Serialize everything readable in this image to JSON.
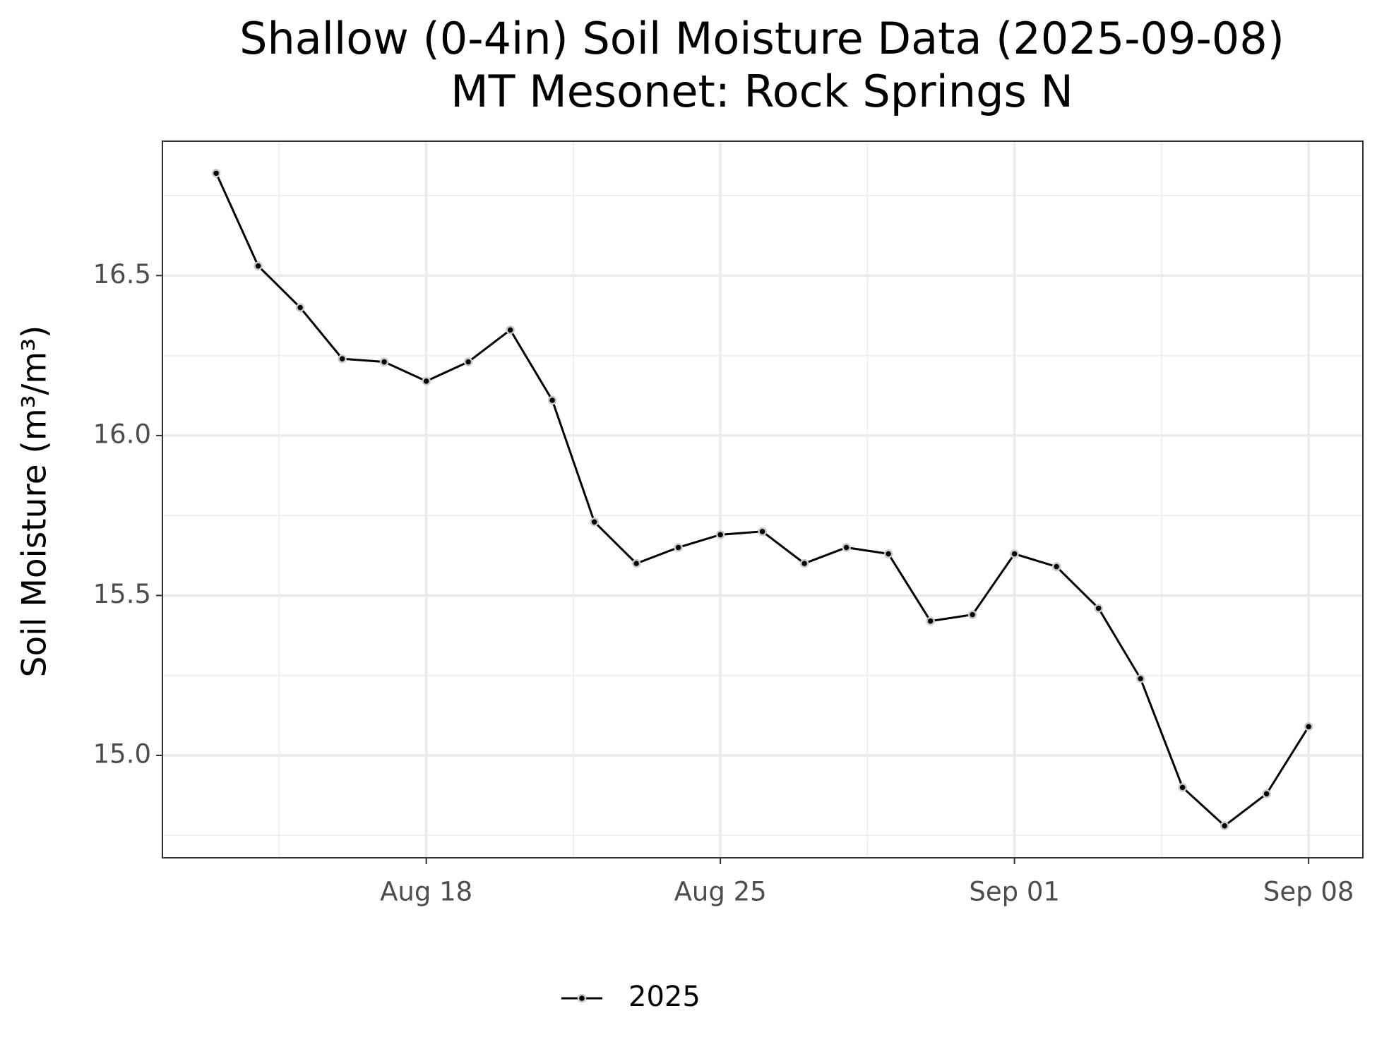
{
  "chart_data": {
    "type": "line",
    "title": "Shallow (0-4in) Soil Moisture Data (2025-09-08)",
    "subtitle": "MT Mesonet: Rock Springs N",
    "y_label": "Soil Moisture (m³/m³)",
    "x": [
      "2025-08-13",
      "2025-08-14",
      "2025-08-15",
      "2025-08-16",
      "2025-08-17",
      "2025-08-18",
      "2025-08-19",
      "2025-08-20",
      "2025-08-21",
      "2025-08-22",
      "2025-08-23",
      "2025-08-24",
      "2025-08-25",
      "2025-08-26",
      "2025-08-27",
      "2025-08-28",
      "2025-08-29",
      "2025-08-30",
      "2025-08-31",
      "2025-09-01",
      "2025-09-02",
      "2025-09-03",
      "2025-09-04",
      "2025-09-05",
      "2025-09-06",
      "2025-09-07",
      "2025-09-08"
    ],
    "series": [
      {
        "name": "2025",
        "color": "#000000",
        "values": [
          16.82,
          16.53,
          16.4,
          16.24,
          16.23,
          16.17,
          16.23,
          16.33,
          16.11,
          15.73,
          15.6,
          15.65,
          15.69,
          15.7,
          15.6,
          15.65,
          15.63,
          15.42,
          15.44,
          15.63,
          15.59,
          15.46,
          15.24,
          14.9,
          14.78,
          14.88,
          15.09
        ]
      }
    ],
    "xlim": [
      "2025-08-11T17:17",
      "2025-09-09T07:00"
    ],
    "xticks": [
      {
        "value": "2025-08-18",
        "label": "Aug 18"
      },
      {
        "value": "2025-08-25",
        "label": "Aug 25"
      },
      {
        "value": "2025-09-01",
        "label": "Sep 01"
      },
      {
        "value": "2025-09-08",
        "label": "Sep 08"
      }
    ],
    "ylim": [
      14.68,
      16.92
    ],
    "yticks": [
      {
        "value": 15,
        "label": "15.0"
      },
      15.5,
      {
        "value": 16,
        "label": "16.0"
      },
      16.5
    ],
    "grid": true,
    "legend": "bottom"
  }
}
